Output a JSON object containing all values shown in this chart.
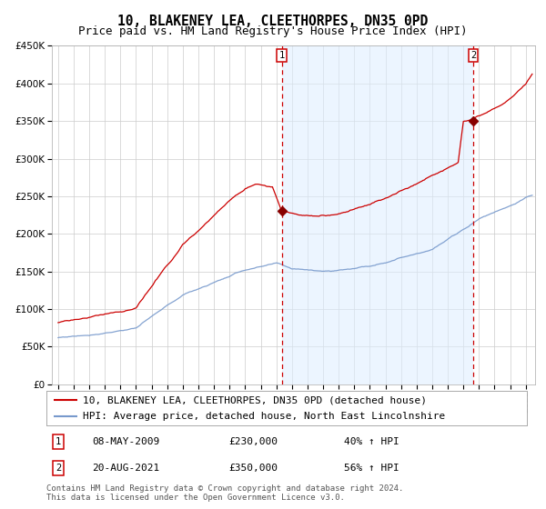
{
  "title": "10, BLAKENEY LEA, CLEETHORPES, DN35 0PD",
  "subtitle": "Price paid vs. HM Land Registry's House Price Index (HPI)",
  "hpi_label": "HPI: Average price, detached house, North East Lincolnshire",
  "property_label": "10, BLAKENEY LEA, CLEETHORPES, DN35 0PD (detached house)",
  "footer_line1": "Contains HM Land Registry data © Crown copyright and database right 2024.",
  "footer_line2": "This data is licensed under the Open Government Licence v3.0.",
  "sale1_date": "08-MAY-2009",
  "sale1_price": 230000,
  "sale1_pct": "40%",
  "sale2_date": "20-AUG-2021",
  "sale2_price": 350000,
  "sale2_pct": "56%",
  "sale1_year": 2009.36,
  "sale2_year": 2021.63,
  "ylim": [
    0,
    450000
  ],
  "yticks": [
    0,
    50000,
    100000,
    150000,
    200000,
    250000,
    300000,
    350000,
    400000,
    450000
  ],
  "xlim_left": 1994.6,
  "xlim_right": 2025.6,
  "background_color": "#ffffff",
  "plot_bg_color": "#ffffff",
  "grid_color": "#cccccc",
  "red_line_color": "#cc0000",
  "blue_line_color": "#7799cc",
  "sale_marker_color": "#880000",
  "dashed_line_color": "#cc0000",
  "highlight_bg_color": "#ddeeff",
  "box_border_color": "#cc0000",
  "title_fontsize": 10.5,
  "subtitle_fontsize": 9,
  "tick_fontsize": 7.5,
  "legend_fontsize": 8,
  "footer_fontsize": 6.5,
  "hpi_kp_x": [
    0,
    24,
    60,
    96,
    144,
    168,
    180,
    210,
    240,
    288,
    312,
    324,
    348,
    360,
    366
  ],
  "hpi_kp_y": [
    62000,
    66000,
    77000,
    118000,
    152000,
    158000,
    150000,
    148000,
    155000,
    180000,
    205000,
    220000,
    238000,
    248000,
    252000
  ],
  "prop_kp_x": [
    0,
    24,
    60,
    96,
    130,
    144,
    152,
    165,
    172,
    185,
    210,
    240,
    270,
    308,
    312,
    330,
    348,
    360,
    366
  ],
  "prop_kp_y": [
    82000,
    88000,
    100000,
    185000,
    240000,
    258000,
    265000,
    262000,
    230000,
    225000,
    225000,
    238000,
    260000,
    295000,
    350000,
    360000,
    380000,
    400000,
    415000
  ],
  "noise_seed": 77,
  "hpi_noise_scale": 600,
  "prop_noise_scale": 900
}
